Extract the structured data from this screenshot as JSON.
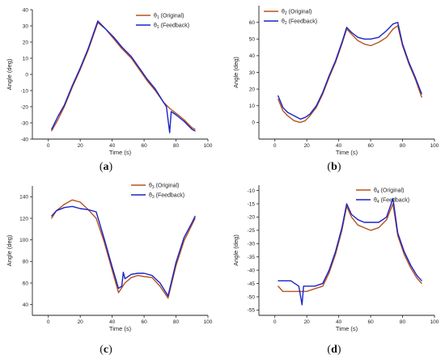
{
  "figure": {
    "panels": [
      {
        "label_pre": "(",
        "letter": "a",
        "label_post": ")"
      },
      {
        "label_pre": "(",
        "letter": "b",
        "label_post": ")"
      },
      {
        "label_pre": "(",
        "letter": "c",
        "label_post": ")"
      },
      {
        "label_pre": "(",
        "letter": "d",
        "label_post": ")"
      }
    ]
  },
  "colors": {
    "original": "#b5531e",
    "feedback": "#1a24c8",
    "axis": "#222222"
  },
  "chart_data": [
    {
      "type": "line",
      "xlabel": "Time (s)",
      "ylabel": "Angle (deg)",
      "xlim": [
        -10,
        100
      ],
      "ylim": [
        -40,
        40
      ],
      "xticks": [
        0,
        20,
        40,
        60,
        80,
        100
      ],
      "yticks": [
        -40,
        -30,
        -20,
        -10,
        0,
        10,
        20,
        30,
        40
      ],
      "legend_position": "top-right",
      "grid": false,
      "series": [
        {
          "name": "θ1 (Original)",
          "sym": "θ",
          "sub": "1",
          "suffix": " (Original)",
          "x": [
            2,
            6,
            10,
            15,
            20,
            25,
            31,
            36,
            41,
            46,
            52,
            57,
            62,
            67,
            72,
            76,
            80,
            85,
            90,
            92
          ],
          "y": [
            -35,
            -28,
            -20,
            -8,
            3,
            15,
            32,
            28,
            22,
            16,
            10,
            3,
            -4,
            -10,
            -17,
            -21,
            -24,
            -28,
            -33,
            -34
          ]
        },
        {
          "name": "θ1 (Feedback)",
          "sym": "θ",
          "sub": "1",
          "suffix": " (Feedback)",
          "x": [
            2,
            6,
            10,
            15,
            20,
            25,
            31,
            36,
            41,
            46,
            52,
            57,
            62,
            67,
            72,
            74,
            76,
            77,
            80,
            85,
            90,
            92
          ],
          "y": [
            -34,
            -26,
            -19,
            -7,
            4,
            16,
            33,
            28,
            23,
            17,
            11,
            4,
            -3,
            -9,
            -17,
            -20,
            -36,
            -23,
            -25,
            -29,
            -34,
            -35
          ]
        }
      ]
    },
    {
      "type": "line",
      "xlabel": "Time (s)",
      "ylabel": "Angle (deg)",
      "xlim": [
        -10,
        100
      ],
      "ylim": [
        -10,
        70
      ],
      "xticks": [
        0,
        20,
        40,
        60,
        80,
        100
      ],
      "yticks": [
        0,
        10,
        20,
        30,
        40,
        50,
        60
      ],
      "legend_position": "top-left",
      "grid": false,
      "series": [
        {
          "name": "θ2 (Original)",
          "sym": "θ",
          "sub": "2",
          "suffix": " (Original)",
          "x": [
            2,
            5,
            8,
            12,
            16,
            19,
            22,
            26,
            30,
            34,
            38,
            42,
            45,
            48,
            52,
            56,
            60,
            65,
            70,
            74,
            77,
            80,
            84,
            88,
            92
          ],
          "y": [
            14,
            7,
            4,
            1,
            0,
            1,
            4,
            9,
            17,
            27,
            36,
            47,
            56,
            53,
            49,
            47,
            46,
            48,
            51,
            56,
            58,
            46,
            35,
            26,
            15
          ]
        },
        {
          "name": "θ2 (Feedback)",
          "sym": "θ",
          "sub": "2",
          "suffix": " (Feedback)",
          "x": [
            2,
            5,
            8,
            12,
            16,
            19,
            22,
            26,
            30,
            34,
            38,
            42,
            45,
            48,
            52,
            56,
            60,
            65,
            70,
            74,
            77,
            80,
            84,
            88,
            92
          ],
          "y": [
            16,
            9,
            6,
            4,
            2,
            3,
            5,
            10,
            18,
            28,
            37,
            48,
            57,
            54,
            51,
            50,
            50,
            51,
            55,
            59,
            60,
            47,
            36,
            27,
            17
          ]
        }
      ]
    },
    {
      "type": "line",
      "xlabel": "Time (s)",
      "ylabel": "Angle (deg)",
      "xlim": [
        -10,
        100
      ],
      "ylim": [
        30,
        150
      ],
      "xticks": [
        0,
        20,
        40,
        60,
        80,
        100
      ],
      "yticks": [
        40,
        60,
        80,
        100,
        120,
        140
      ],
      "legend_position": "top-right",
      "grid": false,
      "series": [
        {
          "name": "θ3 (Original)",
          "sym": "θ",
          "sub": "3",
          "suffix": " (Original)",
          "x": [
            2,
            5,
            10,
            15,
            20,
            25,
            30,
            35,
            40,
            44,
            48,
            52,
            56,
            60,
            65,
            70,
            75,
            80,
            85,
            90,
            92
          ],
          "y": [
            120,
            127,
            133,
            137,
            135,
            128,
            120,
            98,
            72,
            51,
            60,
            65,
            67,
            66,
            65,
            57,
            46,
            76,
            99,
            114,
            120
          ]
        },
        {
          "name": "θ3 (Feedback)",
          "sym": "θ",
          "sub": "3",
          "suffix": " (Feedback)",
          "x": [
            2,
            5,
            10,
            15,
            20,
            25,
            30,
            35,
            40,
            44,
            46,
            47,
            48,
            52,
            56,
            60,
            65,
            70,
            75,
            80,
            85,
            90,
            92
          ],
          "y": [
            122,
            127,
            130,
            131,
            129,
            128,
            126,
            101,
            75,
            55,
            57,
            70,
            64,
            68,
            69,
            69,
            67,
            60,
            48,
            79,
            102,
            116,
            122
          ]
        }
      ]
    },
    {
      "type": "line",
      "xlabel": "Time (s)",
      "ylabel": "Angle (deg)",
      "xlim": [
        -10,
        100
      ],
      "ylim": [
        -57,
        -8
      ],
      "xticks": [
        0,
        20,
        40,
        60,
        80,
        100
      ],
      "yticks": [
        -55,
        -50,
        -45,
        -40,
        -35,
        -30,
        -25,
        -20,
        -15,
        -10
      ],
      "legend_position": "top-right",
      "grid": false,
      "series": [
        {
          "name": "θ4 (Original)",
          "sym": "θ",
          "sub": "4",
          "suffix": " (Original)",
          "x": [
            2,
            5,
            10,
            15,
            20,
            25,
            30,
            34,
            38,
            42,
            45,
            48,
            52,
            56,
            60,
            65,
            70,
            74,
            77,
            81,
            85,
            89,
            92
          ],
          "y": [
            -46,
            -48,
            -48,
            -48,
            -48,
            -47,
            -46,
            -41,
            -34,
            -25,
            -16,
            -20,
            -23,
            -24,
            -25,
            -24,
            -21,
            -15,
            -27,
            -34,
            -39,
            -43,
            -45
          ]
        },
        {
          "name": "θ4 (Feedback)",
          "sym": "θ",
          "sub": "4",
          "suffix": " (Feedback)",
          "x": [
            2,
            5,
            10,
            15,
            17,
            18,
            19,
            20,
            25,
            30,
            34,
            38,
            42,
            45,
            48,
            52,
            56,
            60,
            65,
            70,
            74,
            77,
            81,
            85,
            89,
            92
          ],
          "y": [
            -44,
            -44,
            -44,
            -46,
            -53,
            -46,
            -46,
            -46,
            -46,
            -45,
            -40,
            -33,
            -24,
            -15,
            -19,
            -21,
            -22,
            -22,
            -22,
            -20,
            -13,
            -26,
            -33,
            -38,
            -42,
            -44
          ]
        }
      ]
    }
  ]
}
